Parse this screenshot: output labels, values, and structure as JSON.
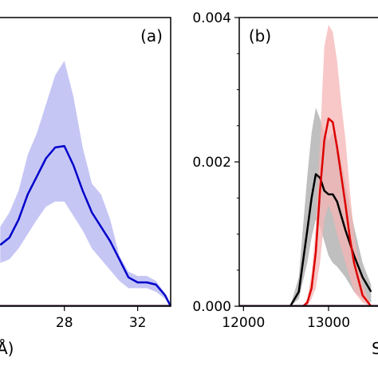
{
  "chart_data": [
    {
      "type": "line",
      "panel_label": "(a)",
      "xlabel": "Å)",
      "x_ticks": [
        28,
        32
      ],
      "xlim": [
        24.4,
        33.8
      ],
      "ylim": [
        0,
        0.004
      ],
      "series": [
        {
          "color": "#0000cc",
          "band_color": "#b3b3f2",
          "x": [
            24.5,
            25,
            25.5,
            26,
            26.5,
            27,
            27.5,
            28,
            28.5,
            29,
            29.5,
            30,
            30.5,
            31,
            31.5,
            32,
            32.5,
            33,
            33.5,
            33.8
          ],
          "mean": [
            0.00085,
            0.00095,
            0.0012,
            0.00155,
            0.0018,
            0.00205,
            0.0022,
            0.00222,
            0.00195,
            0.0016,
            0.0013,
            0.0011,
            0.0009,
            0.00065,
            0.0004,
            0.00033,
            0.00033,
            0.0003,
            0.00015,
            0.0
          ],
          "lower": [
            0.0006,
            0.00065,
            0.0008,
            0.001,
            0.0012,
            0.00138,
            0.00145,
            0.00145,
            0.00125,
            0.00105,
            0.0008,
            0.00065,
            0.0005,
            0.00035,
            0.00025,
            0.00025,
            0.00025,
            0.0002,
            0.0001,
            0.0
          ],
          "upper": [
            0.0011,
            0.0013,
            0.0016,
            0.0021,
            0.0024,
            0.0028,
            0.0032,
            0.0034,
            0.0029,
            0.0022,
            0.0017,
            0.00155,
            0.0012,
            0.0007,
            0.00048,
            0.00042,
            0.00042,
            0.00035,
            0.00018,
            0.0
          ]
        }
      ]
    },
    {
      "type": "line",
      "panel_label": "(b)",
      "xlabel": "S",
      "x_ticks": [
        12000,
        13000
      ],
      "y_ticks": [
        "0.000",
        "0.002",
        "0.004"
      ],
      "xlim": [
        11950,
        13600
      ],
      "ylim": [
        0,
        0.004
      ],
      "series": [
        {
          "color": "#000000",
          "band_color": "#a9a9a9",
          "x": [
            12550,
            12650,
            12750,
            12800,
            12850,
            12900,
            12950,
            13000,
            13050,
            13100,
            13200,
            13300,
            13400,
            13500
          ],
          "mean": [
            0.0,
            0.0002,
            0.00105,
            0.0015,
            0.00183,
            0.00178,
            0.0016,
            0.00155,
            0.00155,
            0.00145,
            0.00105,
            0.0007,
            0.0004,
            0.0002
          ],
          "lower": [
            0.0,
            0.0001,
            0.0006,
            0.00095,
            0.0012,
            0.0011,
            0.0009,
            0.0007,
            0.0006,
            0.00055,
            0.0004,
            0.0002,
            0.0001,
            5e-05
          ],
          "upper": [
            0.0,
            0.0004,
            0.0018,
            0.0024,
            0.00275,
            0.0026,
            0.0024,
            0.0023,
            0.0024,
            0.0023,
            0.0017,
            0.0011,
            0.0006,
            0.0003
          ]
        },
        {
          "color": "#dd0000",
          "band_color": "#f6b4b4",
          "x": [
            12700,
            12750,
            12800,
            12850,
            12900,
            12950,
            13000,
            13050,
            13100,
            13150,
            13200,
            13250,
            13300,
            13400,
            13500
          ],
          "mean": [
            0.0,
            5e-05,
            0.00025,
            0.00075,
            0.0016,
            0.0023,
            0.0026,
            0.00255,
            0.0022,
            0.0018,
            0.0014,
            0.00095,
            0.0006,
            0.00015,
            0.0
          ],
          "lower": [
            0.0,
            0.0,
            0.0001,
            0.00025,
            0.0006,
            0.0012,
            0.0014,
            0.00125,
            0.001,
            0.0008,
            0.0006,
            0.0004,
            0.0002,
            5e-05,
            0.0
          ],
          "upper": [
            0.0,
            0.0001,
            0.00045,
            0.0011,
            0.0023,
            0.0036,
            0.0039,
            0.0038,
            0.0034,
            0.0028,
            0.0023,
            0.0016,
            0.001,
            0.0003,
            0.0
          ]
        }
      ]
    }
  ]
}
